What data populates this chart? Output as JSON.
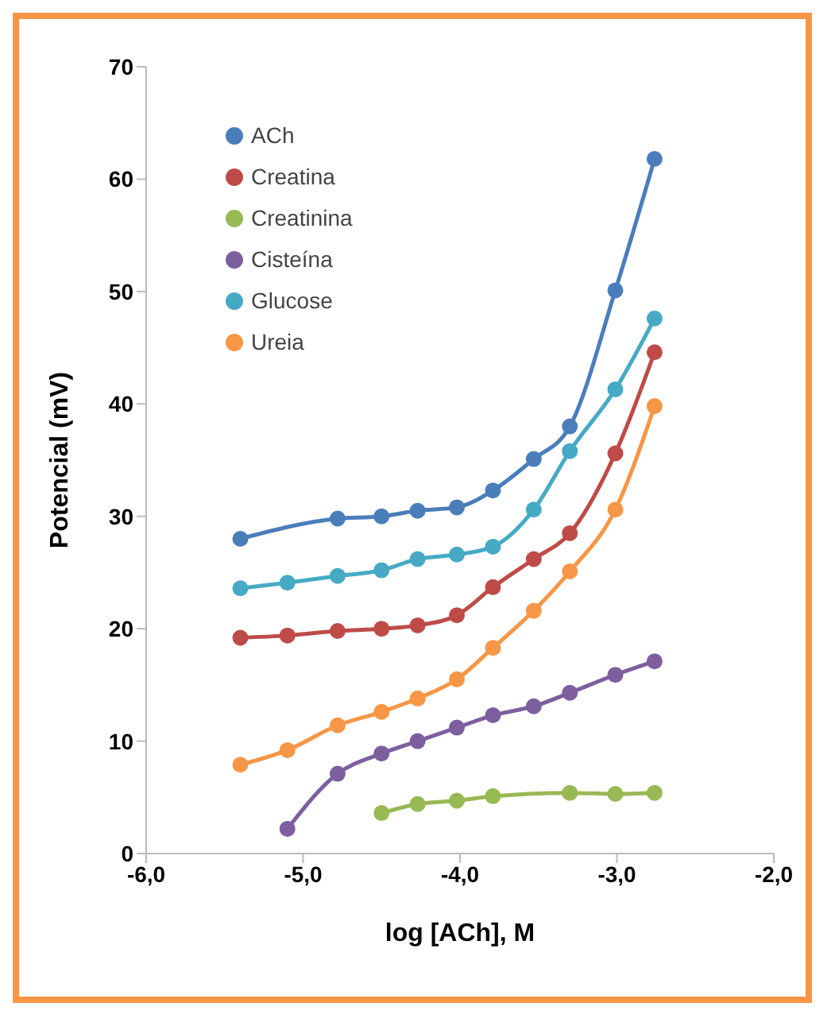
{
  "chart_data": {
    "type": "line",
    "xlabel": "log [ACh], M",
    "ylabel": "Potencial (mV)",
    "xlim": [
      -6,
      -2
    ],
    "ylim": [
      0,
      70
    ],
    "xticks": [
      {
        "value": -6,
        "label": "-6,0"
      },
      {
        "value": -5,
        "label": "-5,0"
      },
      {
        "value": -4,
        "label": "-4,0"
      },
      {
        "value": -3,
        "label": "-3,0"
      },
      {
        "value": -2,
        "label": "-2,0"
      }
    ],
    "yticks": [
      0,
      10,
      20,
      30,
      40,
      50,
      60,
      70
    ],
    "grid": false,
    "legend": "top left",
    "marker": "circle",
    "line_style": "solid",
    "series": [
      {
        "name": "ACh",
        "color": "#4a7ebb",
        "x": [
          -5.4,
          -4.78,
          -4.5,
          -4.27,
          -4.02,
          -3.79,
          -3.53,
          -3.3,
          -3.01,
          -2.76
        ],
        "values": [
          28.0,
          29.8,
          30.0,
          30.5,
          30.8,
          32.3,
          35.1,
          38.0,
          50.1,
          61.8
        ]
      },
      {
        "name": "Creatina",
        "color": "#be4b48",
        "x": [
          -5.4,
          -5.1,
          -4.78,
          -4.5,
          -4.27,
          -4.02,
          -3.79,
          -3.53,
          -3.3,
          -3.01,
          -2.76
        ],
        "values": [
          19.2,
          19.4,
          19.8,
          20.0,
          20.3,
          21.2,
          23.7,
          26.2,
          28.5,
          35.6,
          44.6
        ]
      },
      {
        "name": "Creatinina",
        "color": "#98b954",
        "x": [
          -4.5,
          -4.27,
          -4.02,
          -3.79,
          -3.3,
          -3.01,
          -2.76
        ],
        "values": [
          3.6,
          4.4,
          4.7,
          5.1,
          5.4,
          5.3,
          5.4
        ]
      },
      {
        "name": "Cisteína",
        "color": "#7d5fa0",
        "x": [
          -5.1,
          -4.78,
          -4.5,
          -4.27,
          -4.02,
          -3.79,
          -3.53,
          -3.3,
          -3.01,
          -2.76
        ],
        "values": [
          2.2,
          7.1,
          8.9,
          10.0,
          11.2,
          12.3,
          13.1,
          14.3,
          15.9,
          17.1
        ]
      },
      {
        "name": "Glucose",
        "color": "#46aac5",
        "x": [
          -5.4,
          -5.1,
          -4.78,
          -4.5,
          -4.27,
          -4.02,
          -3.79,
          -3.53,
          -3.3,
          -3.01,
          -2.76
        ],
        "values": [
          23.6,
          24.1,
          24.7,
          25.2,
          26.2,
          26.6,
          27.3,
          30.6,
          35.8,
          41.3,
          47.6
        ]
      },
      {
        "name": "Ureia",
        "color": "#f79646",
        "x": [
          -5.4,
          -5.1,
          -4.78,
          -4.5,
          -4.27,
          -4.02,
          -3.79,
          -3.53,
          -3.3,
          -3.01,
          -2.76
        ],
        "values": [
          7.9,
          9.2,
          11.4,
          12.6,
          13.8,
          15.5,
          18.3,
          21.6,
          25.1,
          30.6,
          39.8
        ]
      }
    ]
  }
}
